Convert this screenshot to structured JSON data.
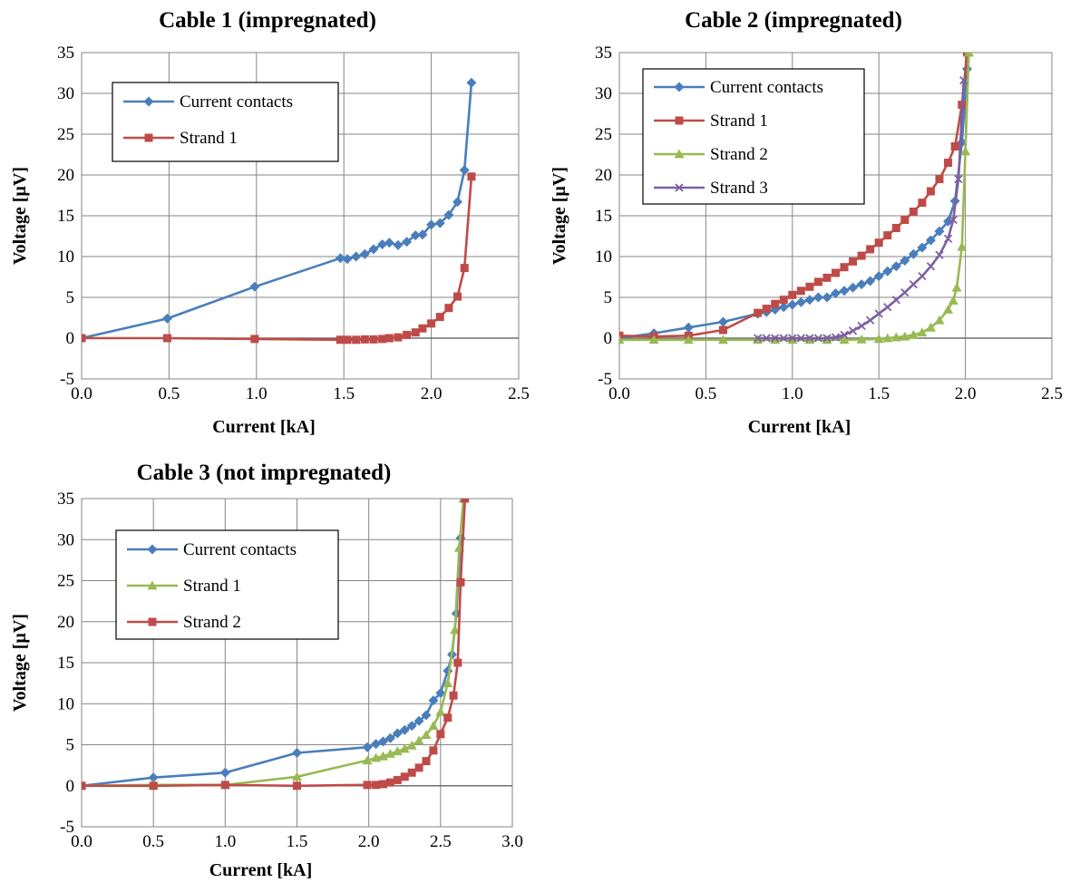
{
  "chart_data": [
    {
      "type": "line",
      "title": "Cable 1 (impregnated)",
      "xlabel": "Current [kA]",
      "ylabel": "Voltage [µV]",
      "xlim": [
        0,
        2.5
      ],
      "ylim": [
        -5,
        35
      ],
      "x_ticks": [
        "0.0",
        "0.5",
        "1.0",
        "1.5",
        "2.0",
        "2.5"
      ],
      "y_ticks": [
        "-5",
        "0",
        "5",
        "10",
        "15",
        "20",
        "25",
        "30",
        "35"
      ],
      "grid": true,
      "legend_position": "top-left",
      "series": [
        {
          "name": "Current contacts",
          "color": "#4a7ebb",
          "marker": "diamond",
          "points": [
            [
              0,
              0
            ],
            [
              0.49,
              2.4
            ],
            [
              0.99,
              6.3
            ],
            [
              1.48,
              9.8
            ],
            [
              1.52,
              9.7
            ],
            [
              1.57,
              10
            ],
            [
              1.62,
              10.3
            ],
            [
              1.67,
              10.9
            ],
            [
              1.72,
              11.5
            ],
            [
              1.76,
              11.7
            ],
            [
              1.81,
              11.4
            ],
            [
              1.86,
              11.8
            ],
            [
              1.91,
              12.6
            ],
            [
              1.95,
              12.7
            ],
            [
              2.0,
              13.9
            ],
            [
              2.05,
              14.1
            ],
            [
              2.1,
              15.1
            ],
            [
              2.15,
              16.7
            ],
            [
              2.19,
              20.6
            ],
            [
              2.23,
              31.3
            ]
          ]
        },
        {
          "name": "Strand 1",
          "color": "#be4b48",
          "marker": "square",
          "points": [
            [
              0,
              0
            ],
            [
              0.49,
              0
            ],
            [
              0.99,
              -0.1
            ],
            [
              1.48,
              -0.2
            ],
            [
              1.52,
              -0.2
            ],
            [
              1.57,
              -0.2
            ],
            [
              1.62,
              -0.15
            ],
            [
              1.67,
              -0.15
            ],
            [
              1.72,
              -0.1
            ],
            [
              1.76,
              0
            ],
            [
              1.81,
              0.1
            ],
            [
              1.86,
              0.4
            ],
            [
              1.91,
              0.7
            ],
            [
              1.95,
              1.2
            ],
            [
              2.0,
              1.8
            ],
            [
              2.05,
              2.6
            ],
            [
              2.1,
              3.7
            ],
            [
              2.15,
              5.1
            ],
            [
              2.19,
              8.6
            ],
            [
              2.23,
              19.8
            ]
          ]
        }
      ]
    },
    {
      "type": "line",
      "title": "Cable 2 (impregnated)",
      "xlabel": "Current [kA]",
      "ylabel": "Voltage [µV]",
      "xlim": [
        0,
        2.5
      ],
      "ylim": [
        -5,
        35
      ],
      "x_ticks": [
        "0.0",
        "0.5",
        "1.0",
        "1.5",
        "2.0",
        "2.5"
      ],
      "y_ticks": [
        "-5",
        "0",
        "5",
        "10",
        "15",
        "20",
        "25",
        "30",
        "35"
      ],
      "grid": true,
      "legend_position": "top-left",
      "series": [
        {
          "name": "Current contacts",
          "color": "#4a7ebb",
          "marker": "diamond",
          "points": [
            [
              0,
              0
            ],
            [
              0.2,
              0.6
            ],
            [
              0.4,
              1.3
            ],
            [
              0.6,
              2.0
            ],
            [
              0.8,
              3.0
            ],
            [
              0.85,
              3.2
            ],
            [
              0.9,
              3.5
            ],
            [
              0.95,
              3.8
            ],
            [
              1.0,
              4.1
            ],
            [
              1.05,
              4.4
            ],
            [
              1.1,
              4.7
            ],
            [
              1.15,
              5.0
            ],
            [
              1.2,
              5.0
            ],
            [
              1.25,
              5.5
            ],
            [
              1.3,
              5.8
            ],
            [
              1.35,
              6.2
            ],
            [
              1.4,
              6.6
            ],
            [
              1.45,
              7.0
            ],
            [
              1.5,
              7.6
            ],
            [
              1.55,
              8.2
            ],
            [
              1.6,
              8.8
            ],
            [
              1.65,
              9.5
            ],
            [
              1.7,
              10.3
            ],
            [
              1.75,
              11.1
            ],
            [
              1.8,
              12.0
            ],
            [
              1.85,
              13.1
            ],
            [
              1.9,
              14.3
            ],
            [
              1.94,
              16.8
            ],
            [
              1.98,
              24
            ],
            [
              2.01,
              33
            ]
          ]
        },
        {
          "name": "Strand 1",
          "color": "#be4b48",
          "marker": "square",
          "points": [
            [
              0,
              0.3
            ],
            [
              0.2,
              0.2
            ],
            [
              0.4,
              0.3
            ],
            [
              0.6,
              1.0
            ],
            [
              0.8,
              3.1
            ],
            [
              0.85,
              3.6
            ],
            [
              0.9,
              4.2
            ],
            [
              0.95,
              4.7
            ],
            [
              1.0,
              5.3
            ],
            [
              1.05,
              5.8
            ],
            [
              1.1,
              6.3
            ],
            [
              1.15,
              6.9
            ],
            [
              1.2,
              7.4
            ],
            [
              1.25,
              8.0
            ],
            [
              1.3,
              8.7
            ],
            [
              1.35,
              9.4
            ],
            [
              1.4,
              10.1
            ],
            [
              1.45,
              10.9
            ],
            [
              1.5,
              11.7
            ],
            [
              1.55,
              12.6
            ],
            [
              1.6,
              13.5
            ],
            [
              1.65,
              14.5
            ],
            [
              1.7,
              15.5
            ],
            [
              1.75,
              16.6
            ],
            [
              1.8,
              18.0
            ],
            [
              1.85,
              19.5
            ],
            [
              1.9,
              21.5
            ],
            [
              1.94,
              23.5
            ],
            [
              1.98,
              28.6
            ],
            [
              2.01,
              35
            ]
          ]
        },
        {
          "name": "Strand 2",
          "color": "#98b954",
          "marker": "triangle",
          "points": [
            [
              0,
              -0.2
            ],
            [
              0.2,
              -0.2
            ],
            [
              0.4,
              -0.2
            ],
            [
              0.6,
              -0.2
            ],
            [
              0.8,
              -0.2
            ],
            [
              0.9,
              -0.2
            ],
            [
              1.0,
              -0.2
            ],
            [
              1.1,
              -0.2
            ],
            [
              1.2,
              -0.2
            ],
            [
              1.3,
              -0.2
            ],
            [
              1.4,
              -0.15
            ],
            [
              1.5,
              -0.1
            ],
            [
              1.55,
              0
            ],
            [
              1.6,
              0.1
            ],
            [
              1.65,
              0.2
            ],
            [
              1.7,
              0.4
            ],
            [
              1.75,
              0.7
            ],
            [
              1.8,
              1.3
            ],
            [
              1.85,
              2.2
            ],
            [
              1.9,
              3.5
            ],
            [
              1.93,
              4.6
            ],
            [
              1.95,
              6.2
            ],
            [
              1.98,
              11.2
            ],
            [
              2.0,
              22.9
            ],
            [
              2.02,
              35
            ]
          ]
        },
        {
          "name": "Strand 3",
          "color": "#7d5fa0",
          "marker": "x",
          "points": [
            [
              0.8,
              0
            ],
            [
              0.85,
              0
            ],
            [
              0.9,
              0
            ],
            [
              0.95,
              0
            ],
            [
              1.0,
              0
            ],
            [
              1.05,
              0
            ],
            [
              1.1,
              0
            ],
            [
              1.15,
              0
            ],
            [
              1.2,
              0
            ],
            [
              1.25,
              0.1
            ],
            [
              1.3,
              0.4
            ],
            [
              1.35,
              0.9
            ],
            [
              1.4,
              1.5
            ],
            [
              1.45,
              2.2
            ],
            [
              1.5,
              3.0
            ],
            [
              1.55,
              3.8
            ],
            [
              1.6,
              4.7
            ],
            [
              1.65,
              5.6
            ],
            [
              1.7,
              6.6
            ],
            [
              1.75,
              7.6
            ],
            [
              1.8,
              8.8
            ],
            [
              1.85,
              10.2
            ],
            [
              1.9,
              12.2
            ],
            [
              1.93,
              14.5
            ],
            [
              1.96,
              19.5
            ],
            [
              1.99,
              31.6
            ]
          ]
        }
      ]
    },
    {
      "type": "line",
      "title": "Cable 3 (not impregnated)",
      "xlabel": "Current [kA]",
      "ylabel": "Voltage [µV]",
      "xlim": [
        0,
        3.0
      ],
      "ylim": [
        -5,
        35
      ],
      "x_ticks": [
        "0.0",
        "0.5",
        "1.0",
        "1.5",
        "2.0",
        "2.5",
        "3.0"
      ],
      "y_ticks": [
        "-5",
        "0",
        "5",
        "10",
        "15",
        "20",
        "25",
        "30",
        "35"
      ],
      "grid": true,
      "legend_position": "top-left",
      "series": [
        {
          "name": "Current contacts",
          "color": "#4a7ebb",
          "marker": "diamond",
          "points": [
            [
              0,
              0
            ],
            [
              0.5,
              1.0
            ],
            [
              1.0,
              1.6
            ],
            [
              1.5,
              4.0
            ],
            [
              1.99,
              4.7
            ],
            [
              2.05,
              5.1
            ],
            [
              2.1,
              5.4
            ],
            [
              2.15,
              5.8
            ],
            [
              2.2,
              6.4
            ],
            [
              2.25,
              6.8
            ],
            [
              2.3,
              7.3
            ],
            [
              2.35,
              7.9
            ],
            [
              2.4,
              8.6
            ],
            [
              2.45,
              10.4
            ],
            [
              2.5,
              11.3
            ],
            [
              2.55,
              14.0
            ],
            [
              2.58,
              16.0
            ],
            [
              2.61,
              21.0
            ],
            [
              2.64,
              30.2
            ]
          ]
        },
        {
          "name": "Strand 1",
          "color": "#98b954",
          "marker": "triangle",
          "points": [
            [
              0,
              0
            ],
            [
              0.5,
              0.1
            ],
            [
              1.0,
              0.1
            ],
            [
              1.5,
              1.1
            ],
            [
              1.99,
              3.1
            ],
            [
              2.05,
              3.4
            ],
            [
              2.1,
              3.6
            ],
            [
              2.15,
              3.9
            ],
            [
              2.2,
              4.2
            ],
            [
              2.25,
              4.5
            ],
            [
              2.3,
              4.9
            ],
            [
              2.35,
              5.5
            ],
            [
              2.4,
              6.2
            ],
            [
              2.45,
              7.3
            ],
            [
              2.5,
              9.0
            ],
            [
              2.55,
              12.5
            ],
            [
              2.6,
              19.0
            ],
            [
              2.63,
              29.0
            ],
            [
              2.66,
              35
            ]
          ]
        },
        {
          "name": "Strand 2",
          "color": "#be4b48",
          "marker": "square",
          "points": [
            [
              0,
              0
            ],
            [
              0.5,
              0
            ],
            [
              1.0,
              0.1
            ],
            [
              1.5,
              0
            ],
            [
              1.99,
              0.1
            ],
            [
              2.05,
              0.1
            ],
            [
              2.1,
              0.2
            ],
            [
              2.15,
              0.4
            ],
            [
              2.2,
              0.7
            ],
            [
              2.25,
              1.1
            ],
            [
              2.3,
              1.6
            ],
            [
              2.35,
              2.2
            ],
            [
              2.4,
              3.0
            ],
            [
              2.45,
              4.3
            ],
            [
              2.5,
              6.3
            ],
            [
              2.55,
              8.3
            ],
            [
              2.59,
              11.0
            ],
            [
              2.62,
              15.0
            ],
            [
              2.64,
              24.8
            ],
            [
              2.67,
              35
            ]
          ]
        }
      ]
    }
  ]
}
